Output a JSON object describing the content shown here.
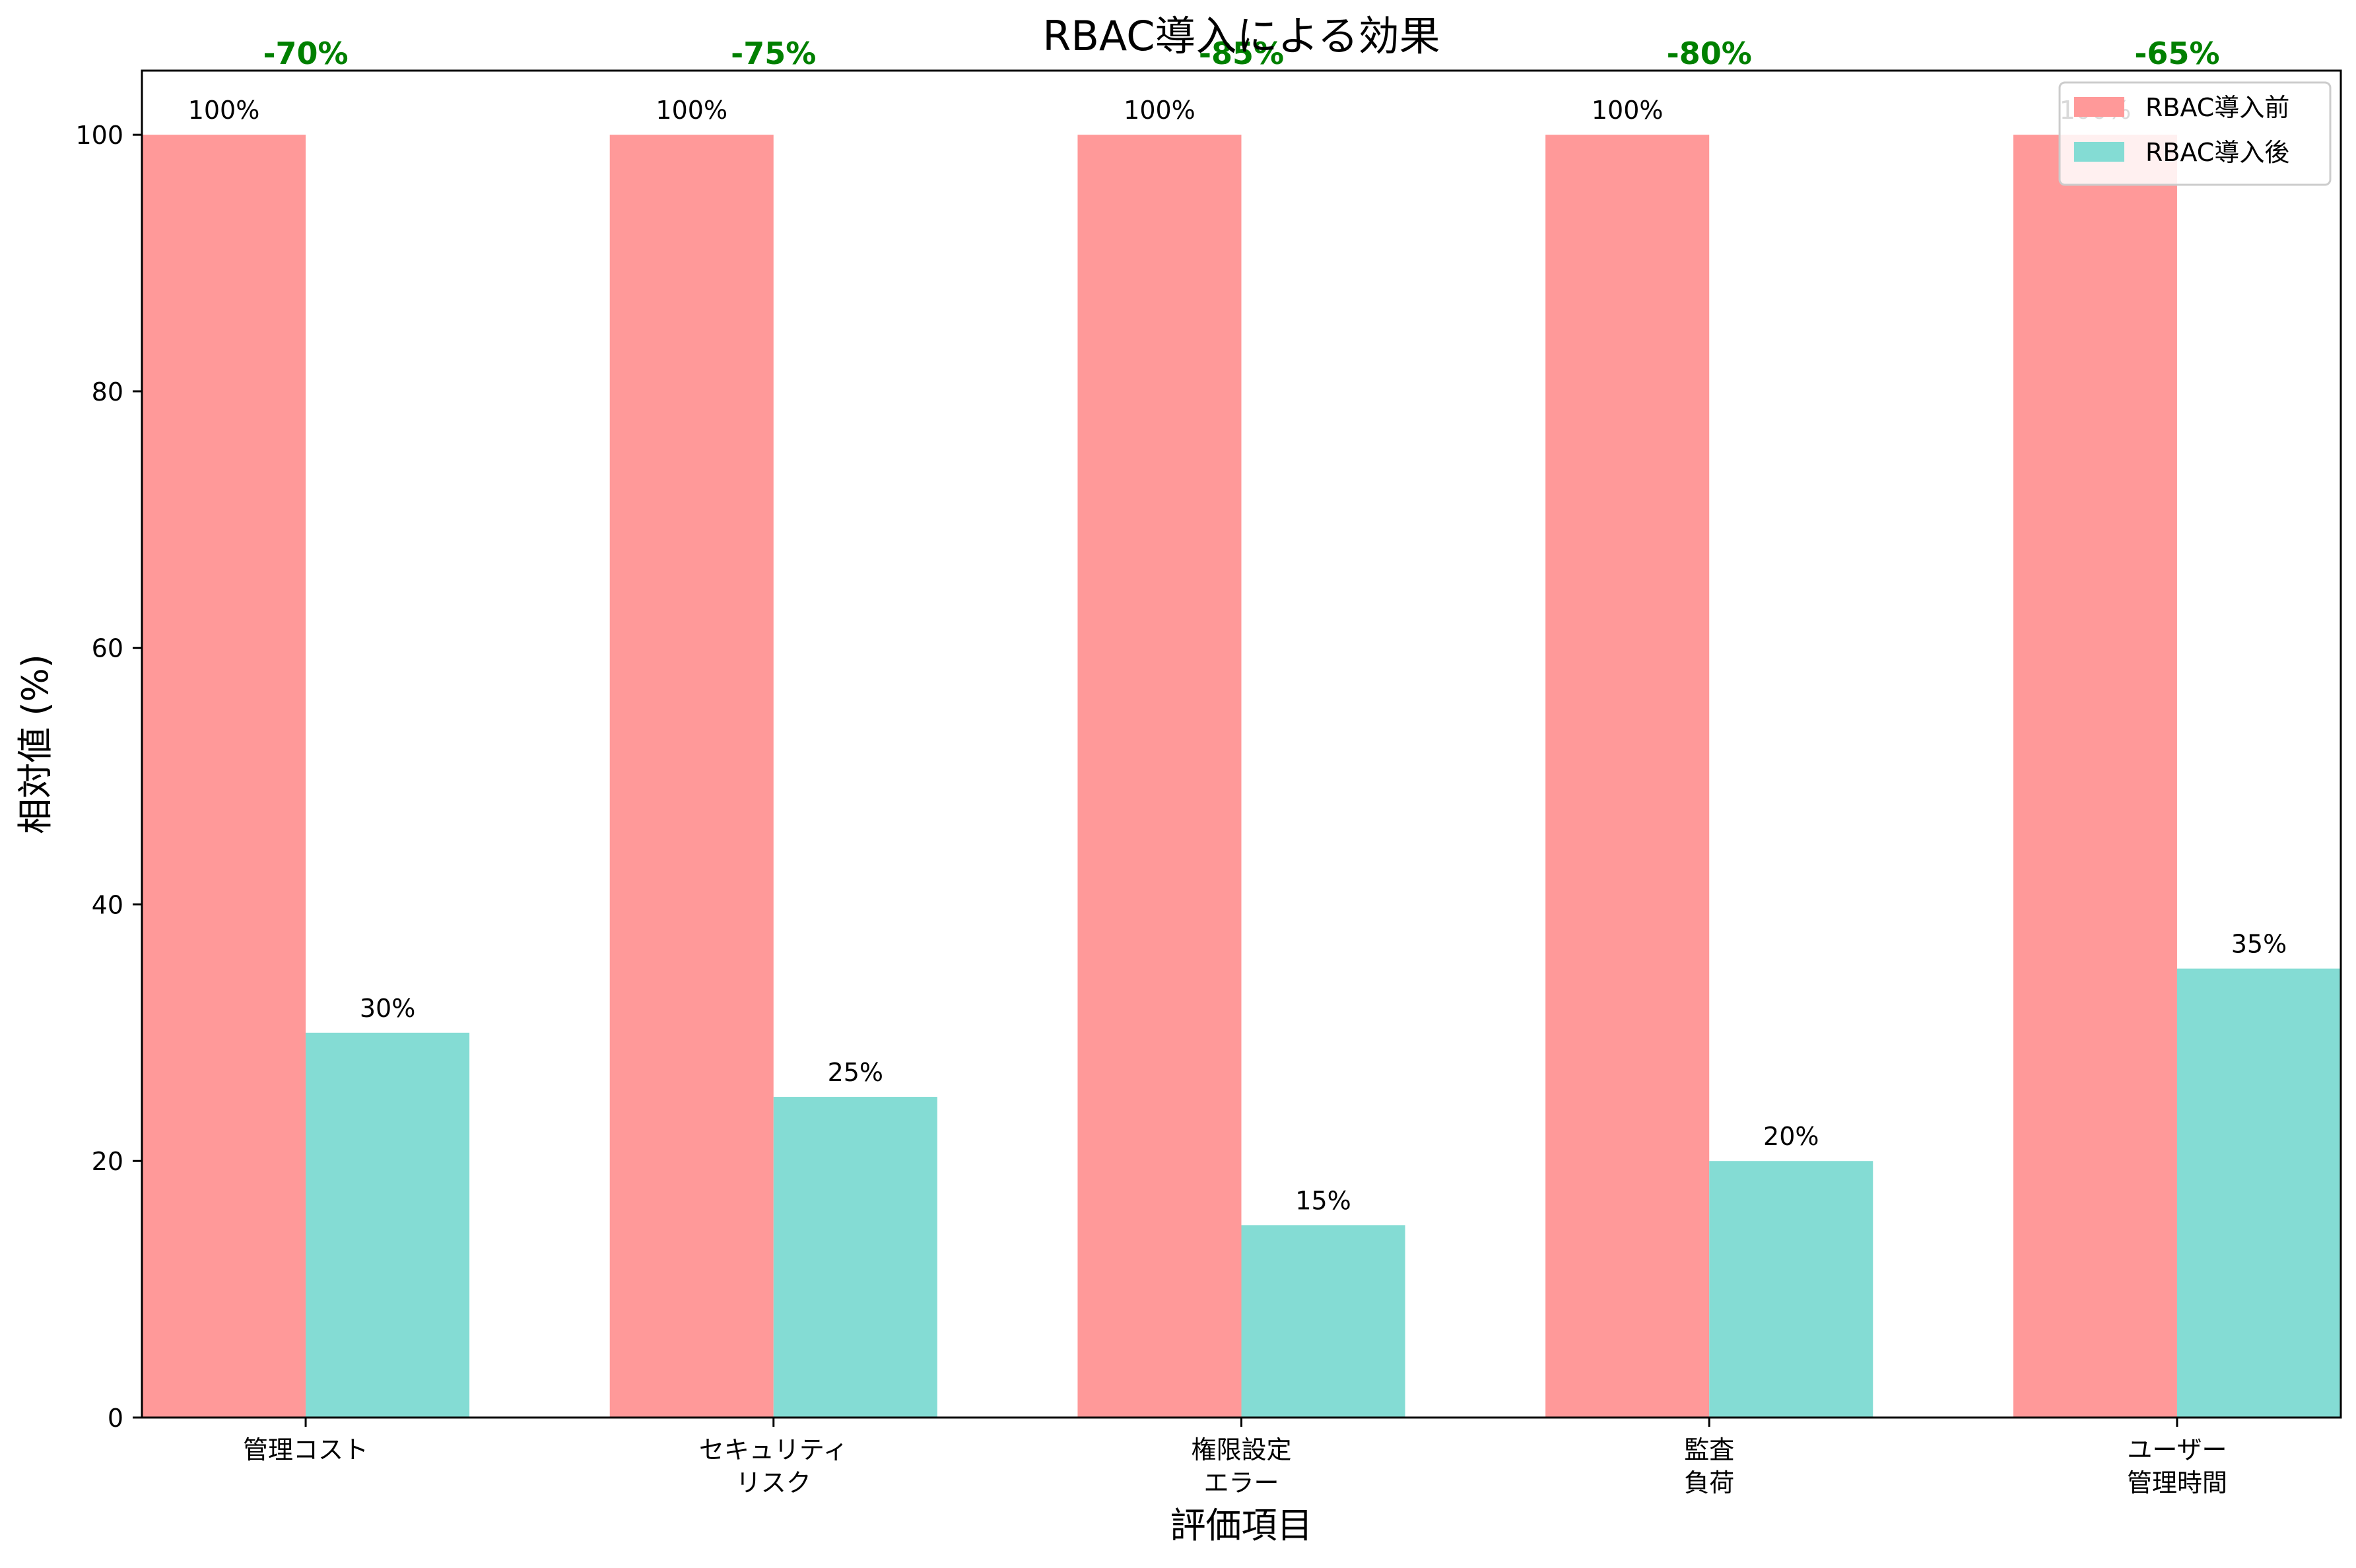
{
  "chart_data": {
    "type": "bar",
    "title": "RBAC導入による効果",
    "xlabel": "評価項目",
    "ylabel": "相対値 (%)",
    "ylim": [
      0,
      105
    ],
    "yticks": [
      0,
      20,
      40,
      60,
      80,
      100
    ],
    "grid": false,
    "legend_position": "top-right",
    "categories": [
      [
        "管理コスト"
      ],
      [
        "セキュリティ",
        "リスク"
      ],
      [
        "権限設定",
        "エラー"
      ],
      [
        "監査",
        "負荷"
      ],
      [
        "ユーザー",
        "管理時間"
      ]
    ],
    "series": [
      {
        "name": "RBAC導入前",
        "color": "#ff9999",
        "values": [
          100,
          100,
          100,
          100,
          100
        ],
        "labels": [
          "100%",
          "100%",
          "100%",
          "100%",
          "100%"
        ]
      },
      {
        "name": "RBAC導入後",
        "color": "#84dcd4",
        "values": [
          30,
          25,
          15,
          20,
          35
        ],
        "labels": [
          "30%",
          "25%",
          "15%",
          "20%",
          "35%"
        ]
      }
    ],
    "reductions": [
      "-70%",
      "-75%",
      "-85%",
      "-80%",
      "-65%"
    ],
    "reduction_color": "#008000"
  }
}
